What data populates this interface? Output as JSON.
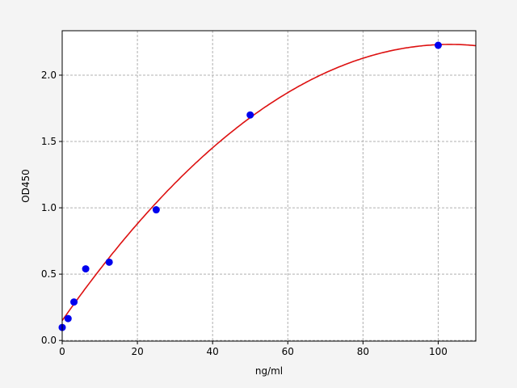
{
  "chart_data": {
    "type": "scatter",
    "title": "",
    "xlabel": "ng/ml",
    "ylabel": "OD450",
    "xlim": [
      0,
      110
    ],
    "ylim": [
      -0.005,
      2.335
    ],
    "grid": true,
    "xticks": [
      0,
      20,
      40,
      60,
      80,
      100
    ],
    "yticks": [
      0.0,
      0.5,
      1.0,
      1.5,
      2.0
    ],
    "xtick_labels": [
      "0",
      "20",
      "40",
      "60",
      "80",
      "100"
    ],
    "ytick_labels": [
      "0.0",
      "0.5",
      "1.0",
      "1.5",
      "2.0"
    ],
    "points": {
      "x": [
        0,
        1.5625,
        3.125,
        6.25,
        12.5,
        25,
        50,
        100
      ],
      "y": [
        0.098,
        0.165,
        0.29,
        0.54,
        0.59,
        0.985,
        1.7,
        2.225
      ],
      "color": "#0000ee"
    },
    "fit_curve": {
      "type": "quadratic",
      "coefficients": [
        0.15,
        0.0404,
        -0.000196
      ],
      "color": "#dd1111"
    }
  }
}
